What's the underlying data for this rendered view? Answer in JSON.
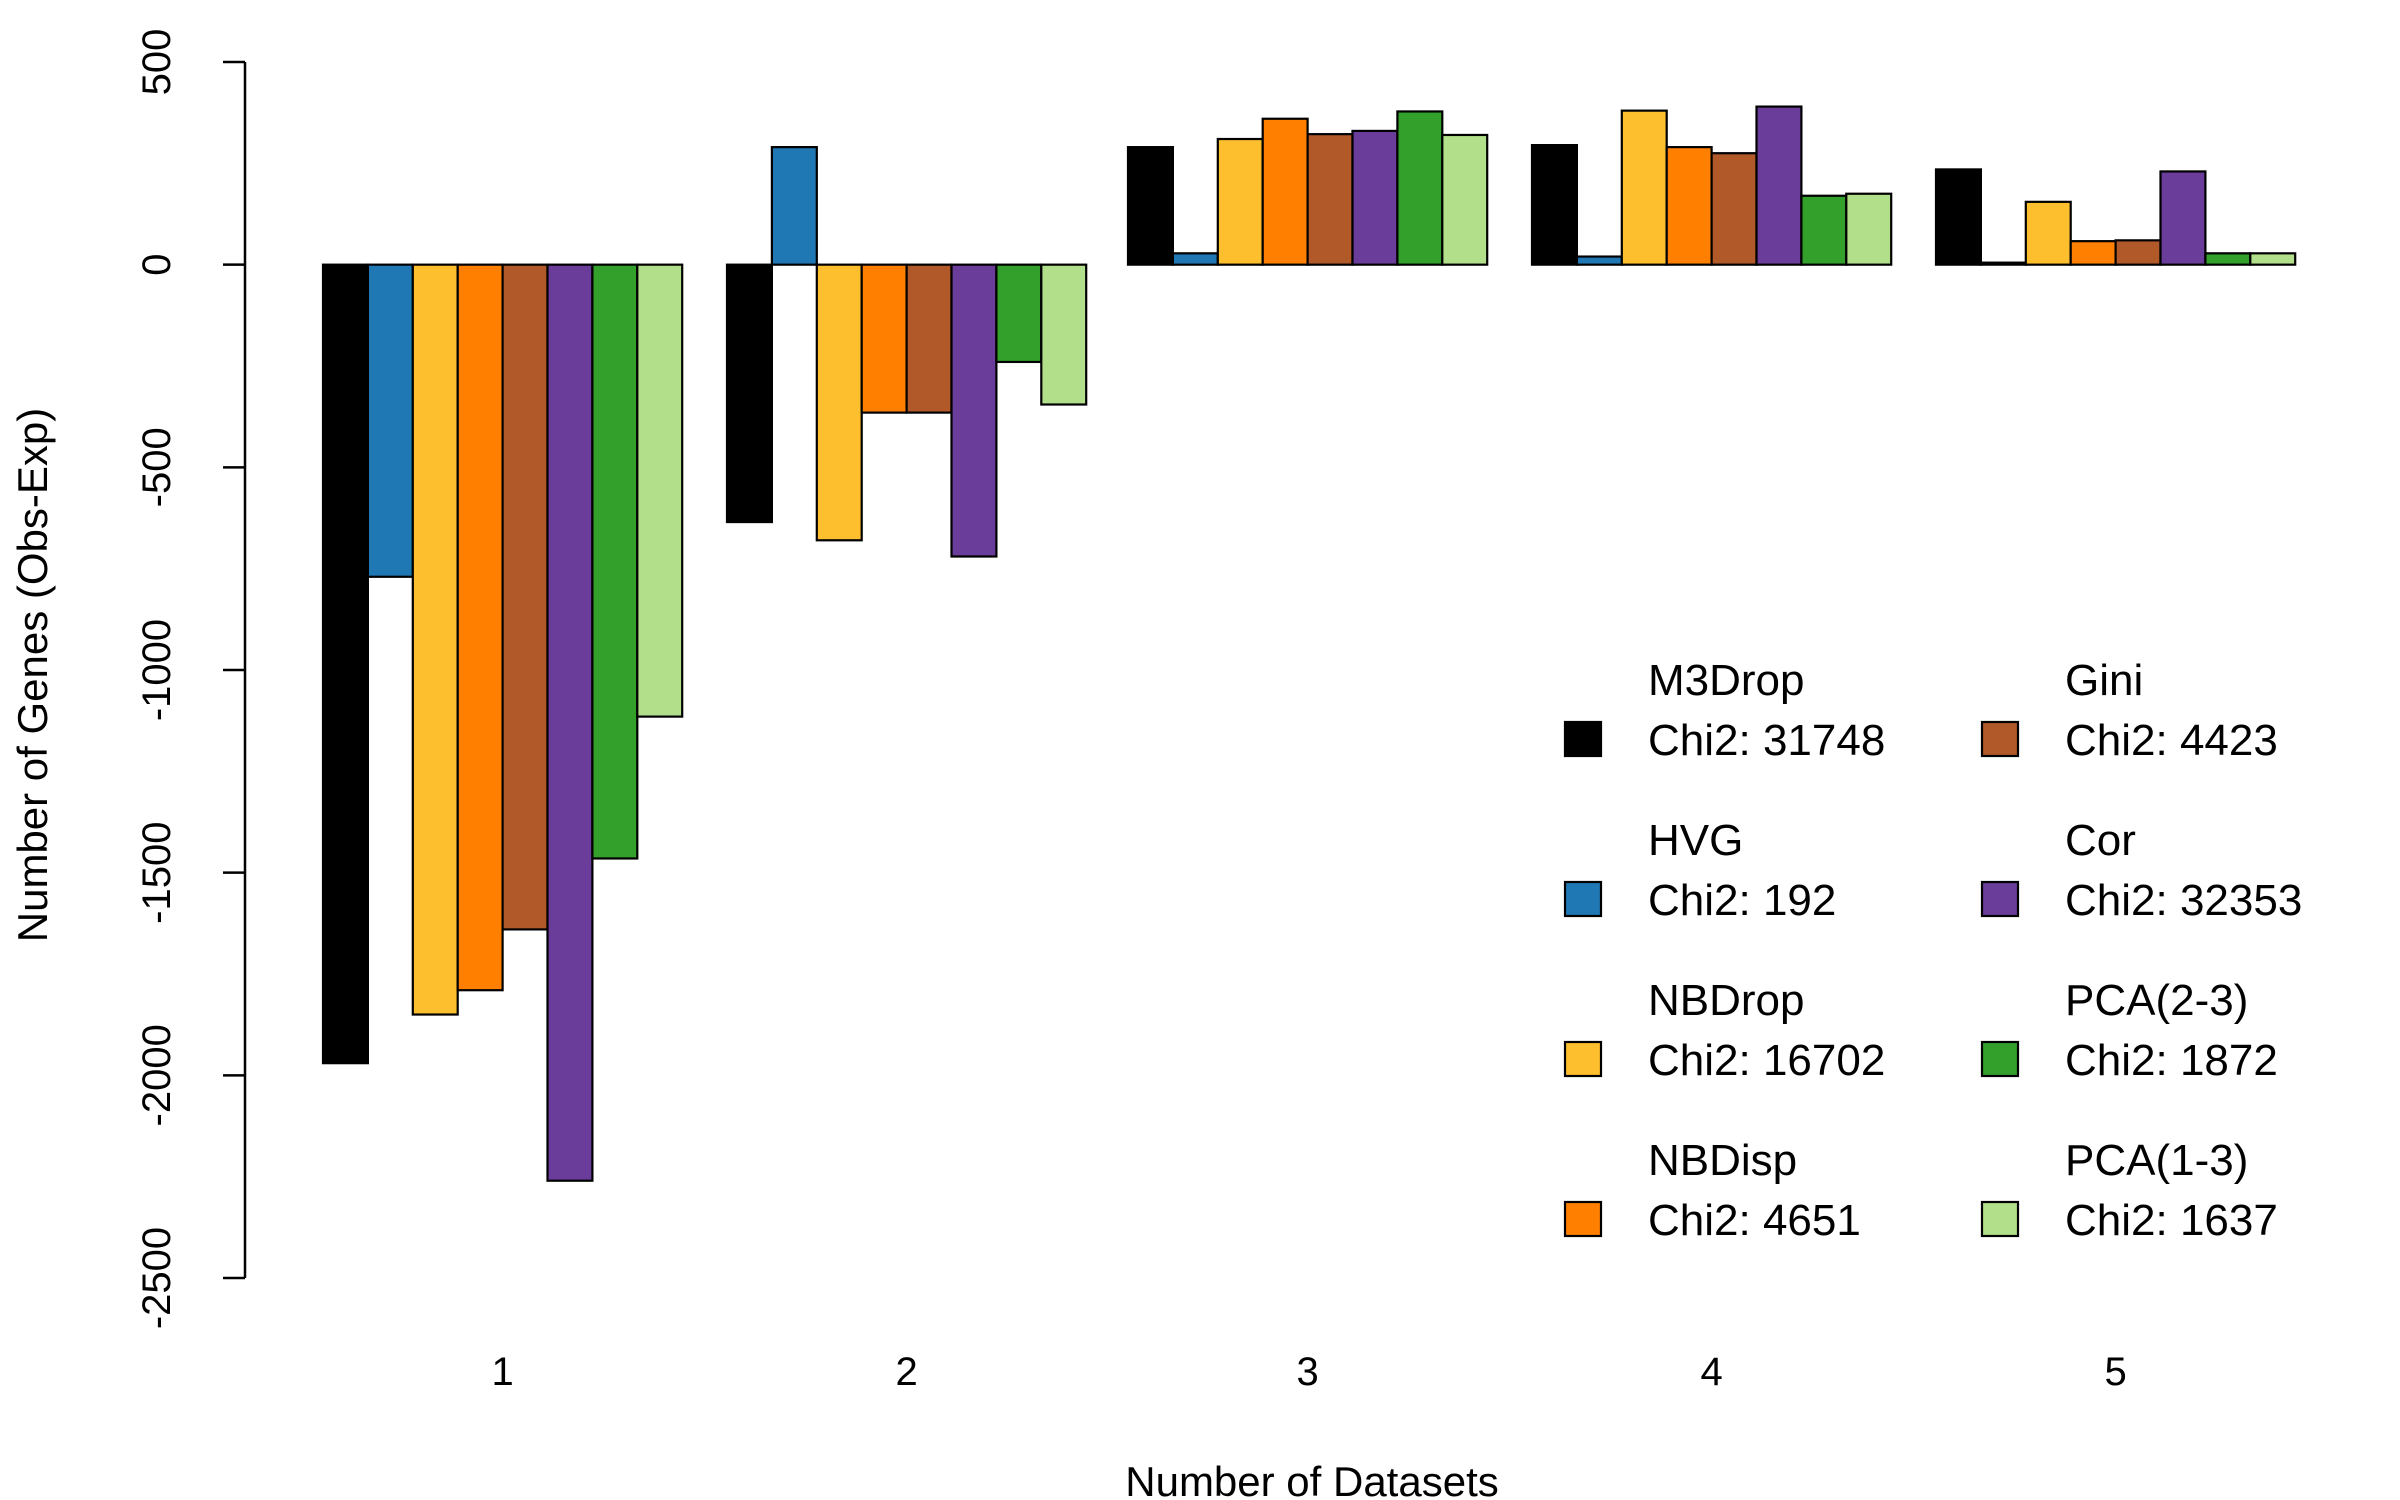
{
  "chart_data": {
    "type": "bar",
    "title": "",
    "xlabel": "Number of Datasets",
    "ylabel": "Number of Genes (Obs-Exp)",
    "categories": [
      "1",
      "2",
      "3",
      "4",
      "5"
    ],
    "ylim": [
      -2500,
      500
    ],
    "yticks": [
      500,
      0,
      -500,
      -1000,
      -1500,
      -2000,
      -2500
    ],
    "grid": false,
    "legend_position": "bottom-right",
    "series": [
      {
        "name": "M3Drop",
        "chi2_label": "Chi2: 31748",
        "color": "#000000",
        "values": [
          -1970,
          -635,
          290,
          295,
          235
        ]
      },
      {
        "name": "HVG",
        "chi2_label": "Chi2: 192",
        "color": "#1f78b4",
        "values": [
          -770,
          290,
          28,
          20,
          5
        ]
      },
      {
        "name": "NBDrop",
        "chi2_label": "Chi2: 16702",
        "color": "#fdbf2d",
        "values": [
          -1850,
          -680,
          310,
          380,
          155
        ]
      },
      {
        "name": "NBDisp",
        "chi2_label": "Chi2: 4651",
        "color": "#ff7f00",
        "values": [
          -1790,
          -365,
          360,
          290,
          58
        ]
      },
      {
        "name": "Gini",
        "chi2_label": "Chi2: 4423",
        "color": "#b15928",
        "values": [
          -1640,
          -365,
          322,
          275,
          60
        ]
      },
      {
        "name": "Cor",
        "chi2_label": "Chi2: 32353",
        "color": "#6a3d9a",
        "values": [
          -2260,
          -720,
          330,
          390,
          230
        ]
      },
      {
        "name": "PCA(2-3)",
        "chi2_label": "Chi2: 1872",
        "color": "#33a02c",
        "values": [
          -1465,
          -240,
          378,
          170,
          28
        ]
      },
      {
        "name": "PCA(1-3)",
        "chi2_label": "Chi2: 1637",
        "color": "#b2df8a",
        "values": [
          -1115,
          -345,
          320,
          175,
          28
        ]
      }
    ]
  }
}
